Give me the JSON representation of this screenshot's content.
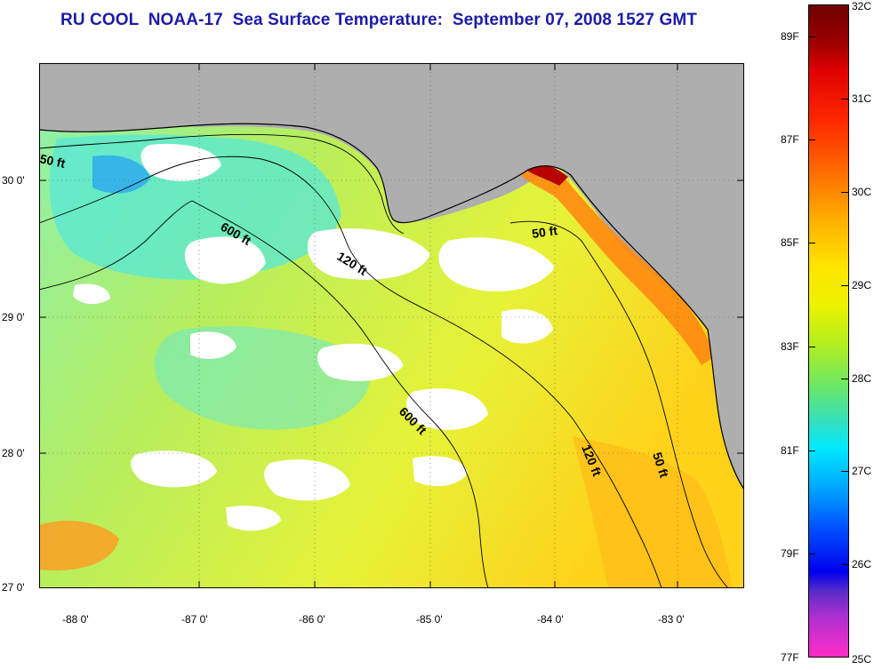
{
  "title": "RU COOL  NOAA-17  Sea Surface Temperature:  September 07, 2008 1527 GMT",
  "map": {
    "latitude_labels": [
      "30 0'",
      "29 0'",
      "28 0'",
      "27 0'"
    ],
    "longitude_labels": [
      "-88 0'",
      "-87 0'",
      "-86 0'",
      "-85 0'",
      "-84 0'",
      "-83 0'"
    ],
    "contour_labels": [
      "50 ft",
      "600 ft",
      "120 ft",
      "50 ft",
      "600 ft",
      "120 ft",
      "50 ft"
    ],
    "land_color": "#aeaeae",
    "cloud_color": "#ffffff"
  },
  "colorbar": {
    "fahrenheit_labels": [
      "89F",
      "87F",
      "85F",
      "83F",
      "81F",
      "79F",
      "77F"
    ],
    "celsius_labels": [
      "32C",
      "31C",
      "30C",
      "29C",
      "28C",
      "27C",
      "26C",
      "25C"
    ]
  }
}
